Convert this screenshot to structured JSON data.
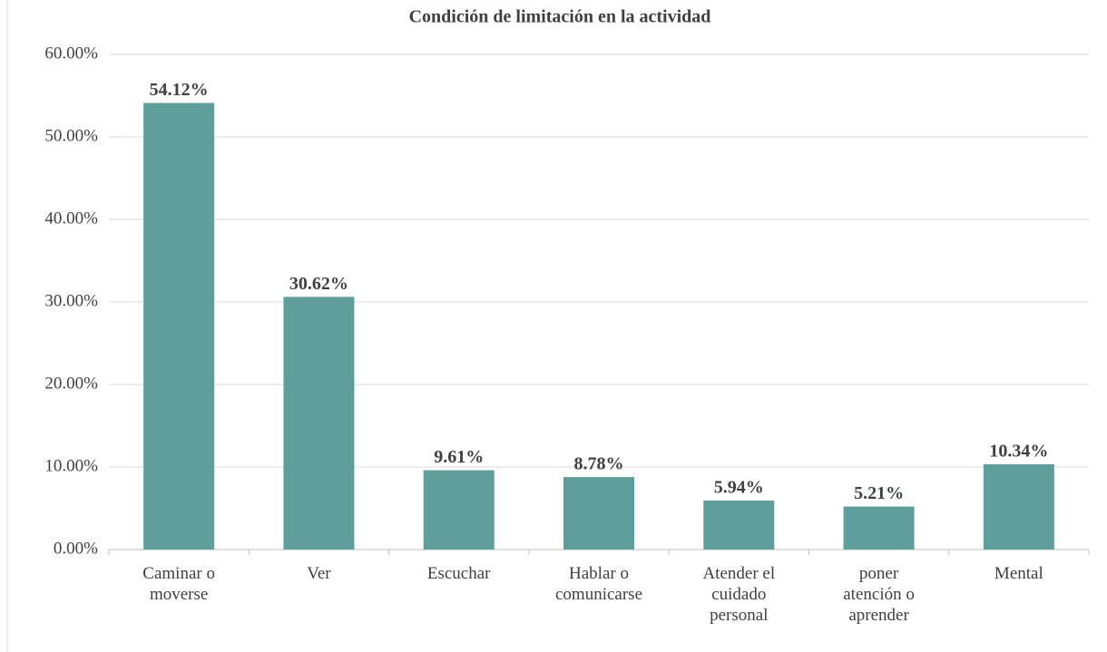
{
  "chart_data": {
    "type": "bar",
    "title": "Condición de limitación en la actividad",
    "categories": [
      "Caminar o moverse",
      "Ver",
      "Escuchar",
      "Hablar o comunicarse",
      "Atender el cuidado personal",
      "poner atención o aprender",
      "Mental"
    ],
    "values": [
      54.12,
      30.62,
      9.61,
      8.78,
      5.94,
      5.21,
      10.34
    ],
    "value_labels": [
      "54.12%",
      "30.62%",
      "9.61%",
      "8.78%",
      "5.94%",
      "5.21%",
      "10.34%"
    ],
    "color": "#5f9f9b",
    "ylim": [
      0,
      60
    ],
    "yticks": [
      {
        "value": 0,
        "label": "0.00%"
      },
      {
        "value": 10,
        "label": "10.00%"
      },
      {
        "value": 20,
        "label": "20.00%"
      },
      {
        "value": 30,
        "label": "30.00%"
      },
      {
        "value": 40,
        "label": "40.00%"
      },
      {
        "value": 50,
        "label": "50.00%"
      },
      {
        "value": 60,
        "label": "60.00%"
      }
    ],
    "grid": true
  }
}
